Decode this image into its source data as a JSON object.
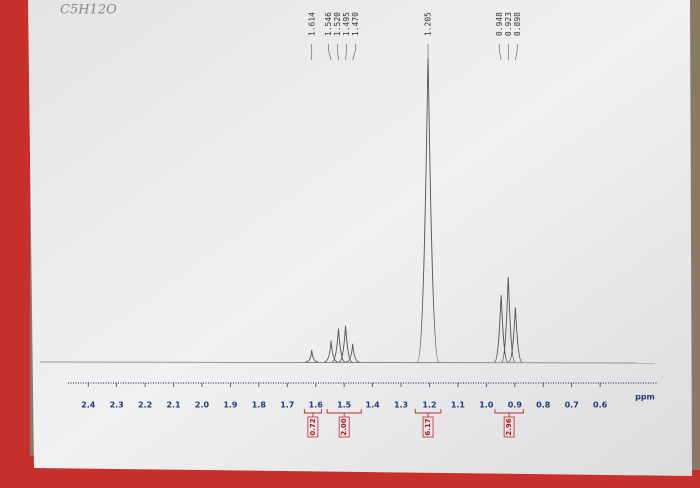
{
  "chart_data": {
    "type": "nmr",
    "annotation": "C5H12O",
    "xlabel": "ppm",
    "xlim": [
      2.45,
      0.4
    ],
    "xticks": [
      2.4,
      2.3,
      2.2,
      2.1,
      {
        "value": 2,
        "label": "2.0"
      },
      1.9,
      1.8,
      1.7,
      1.6,
      1.5,
      1.4,
      1.3,
      1.2,
      1.1,
      {
        "value": 1,
        "label": "1.0"
      },
      0.9,
      0.8,
      0.7,
      0.6
    ],
    "x": [
      1.614,
      1.546,
      {
        "value": 1.52,
        "label": "1.520"
      },
      1.495,
      {
        "value": 1.47,
        "label": "1.470"
      },
      1.205,
      0.948,
      0.923,
      0.898
    ],
    "values": [
      4,
      7,
      11,
      12,
      6,
      100,
      22,
      28,
      18
    ],
    "color": "#555555",
    "integrals": {
      "from": [
        1.64,
        1.56,
        1.25,
        0.97
      ],
      "to": [
        1.58,
        1.44,
        1.16,
        0.87
      ],
      "values": [
        0.72,
        2,
        6.17,
        2.96
      ],
      "value_labels": [
        "0.72",
        "2.00",
        "6.17",
        "2.96"
      ],
      "color": "#c0282a"
    }
  }
}
